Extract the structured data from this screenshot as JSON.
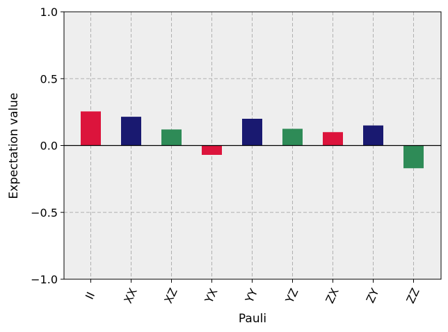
{
  "chart_data": {
    "type": "bar",
    "xlabel": "Pauli",
    "ylabel": "Expectation value",
    "categories": [
      "II",
      "XX",
      "XZ",
      "YX",
      "YY",
      "YZ",
      "ZX",
      "ZY",
      "ZZ"
    ],
    "values": [
      0.255,
      0.215,
      0.12,
      -0.07,
      0.2,
      0.125,
      0.1,
      0.15,
      -0.17
    ],
    "bar_colors": [
      "#dc143c",
      "#191970",
      "#2e8b57",
      "#dc143c",
      "#191970",
      "#2e8b57",
      "#dc143c",
      "#191970",
      "#2e8b57"
    ],
    "ylim": [
      -1.0,
      1.0
    ],
    "yticks": [
      -1.0,
      -0.5,
      0.0,
      0.5,
      1.0
    ],
    "ytick_labels": [
      "−1.0",
      "−0.5",
      "0.0",
      "0.5",
      "1.0"
    ],
    "grid": true,
    "zero_line": true,
    "background_color": "#eeeeee",
    "grid_color": "#b0b0b0"
  }
}
